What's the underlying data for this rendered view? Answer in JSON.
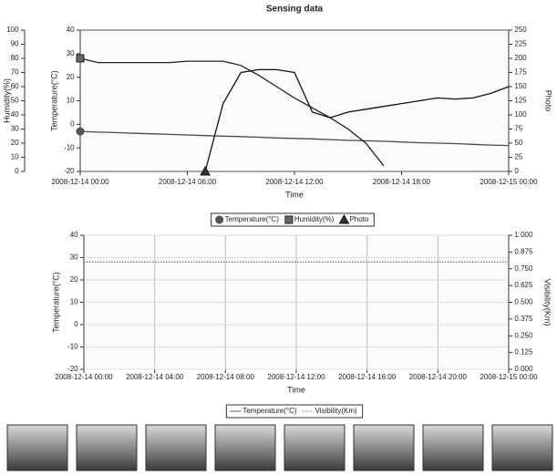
{
  "chart_data": [
    {
      "type": "line",
      "title": "Sensing data",
      "xlabel": "Time",
      "ylabel": "Temperature(°C)",
      "y2label": "Photo",
      "y3label": "Humidity(%)",
      "x": [
        "2008-12-14 00:00",
        "2008-12-14 01:00",
        "2008-12-14 02:00",
        "2008-12-14 03:00",
        "2008-12-14 04:00",
        "2008-12-14 05:00",
        "2008-12-14 06:00",
        "2008-12-14 07:00",
        "2008-12-14 08:00",
        "2008-12-14 09:00",
        "2008-12-14 10:00",
        "2008-12-14 11:00",
        "2008-12-14 12:00",
        "2008-12-14 13:00",
        "2008-12-14 14:00",
        "2008-12-14 15:00",
        "2008-12-14 16:00",
        "2008-12-14 17:00",
        "2008-12-14 18:00",
        "2008-12-14 19:00",
        "2008-12-14 20:00",
        "2008-12-14 21:00",
        "2008-12-14 22:00",
        "2008-12-14 23:00",
        "2008-12-15 00:00"
      ],
      "xlim": [
        "2008-12-14 00:00",
        "2008-12-15 00:00"
      ],
      "xticks": [
        "2008-12-14 00:00",
        "2008-12-14 06:00",
        "2008-12-14 12:00",
        "2008-12-14 18:00",
        "2008-12-15 00:00"
      ],
      "ylim": [
        -20,
        40
      ],
      "yticks": [
        -20,
        -10,
        0,
        10,
        20,
        30,
        40
      ],
      "y2lim": [
        0,
        250
      ],
      "y2ticks": [
        0,
        25,
        50,
        75,
        100,
        125,
        150,
        175,
        200,
        225,
        250
      ],
      "y3lim": [
        0,
        100
      ],
      "y3ticks": [
        0,
        10,
        20,
        30,
        40,
        50,
        60,
        70,
        80,
        90,
        100
      ],
      "grid": false,
      "series": [
        {
          "name": "Temperature(°C)",
          "color": "#4a4a4a",
          "marker": "circle",
          "axis": "y",
          "values": [
            -3,
            -3.3,
            -3.5,
            -3.8,
            -4,
            -4.3,
            -4.5,
            -4.8,
            -5,
            -5.2,
            -5.5,
            -5.8,
            -6,
            -6.2,
            -6.5,
            -6.8,
            -7,
            -7.2,
            -7.5,
            -7.8,
            -8,
            -8.2,
            -8.5,
            -8.8,
            -9
          ]
        },
        {
          "name": "Humidity(%)",
          "color": "#222222",
          "marker": "square",
          "axis": "y3",
          "values": [
            80,
            77,
            77,
            77,
            77,
            77,
            78,
            78,
            78,
            75,
            68,
            60,
            52,
            45,
            38,
            30,
            20,
            4,
            null,
            null,
            null,
            null,
            null,
            null,
            null
          ]
        },
        {
          "name": "Photo",
          "color": "#111111",
          "marker": "triangle",
          "axis": "y2",
          "values": [
            null,
            null,
            null,
            null,
            null,
            null,
            null,
            0,
            120,
            175,
            180,
            180,
            175,
            105,
            95,
            105,
            110,
            115,
            120,
            125,
            130,
            128,
            130,
            138,
            150
          ]
        }
      ]
    },
    {
      "type": "line",
      "xlabel": "Time",
      "ylabel": "Temperature(°C)",
      "y2label": "Visibility(Km)",
      "x": [
        "2008-12-14 00:00",
        "2008-12-14 04:00",
        "2008-12-14 08:00",
        "2008-12-14 12:00",
        "2008-12-14 16:00",
        "2008-12-14 20:00",
        "2008-12-15 00:00"
      ],
      "xlim": [
        "2008-12-14 00:00",
        "2008-12-15 00:00"
      ],
      "xticks": [
        "2008-12-14 00:00",
        "2008-12-14 04:00",
        "2008-12-14 08:00",
        "2008-12-14 12:00",
        "2008-12-14 16:00",
        "2008-12-14 20:00",
        "2008-12-15 00:00"
      ],
      "ylim": [
        -20,
        40
      ],
      "yticks": [
        -20,
        -10,
        0,
        10,
        20,
        30,
        40
      ],
      "y2lim": [
        0,
        1
      ],
      "y2ticks": [
        {
          "value": 0,
          "label": "0.000"
        },
        {
          "value": 0.125,
          "label": "0.125"
        },
        {
          "value": 0.25,
          "label": "0.250"
        },
        {
          "value": 0.375,
          "label": "0.375"
        },
        {
          "value": 0.5,
          "label": "0.500"
        },
        {
          "value": 0.625,
          "label": "0.625"
        },
        {
          "value": 0.75,
          "label": "0.750"
        },
        {
          "value": 0.875,
          "label": "0.875"
        },
        {
          "value": 1,
          "label": "1.000"
        }
      ],
      "grid": true,
      "series": [
        {
          "name": "Temperature(°C)",
          "color": "#555555",
          "style": "solid",
          "axis": "y",
          "values": [
            null,
            null,
            null,
            null,
            null,
            null,
            null
          ]
        },
        {
          "name": "Visibility(Km)",
          "color": "#777777",
          "style": "dotted",
          "axis": "y2",
          "values": [
            0.8,
            0.8,
            0.8,
            0.8,
            0.8,
            0.8,
            0.8
          ]
        }
      ]
    }
  ]
}
